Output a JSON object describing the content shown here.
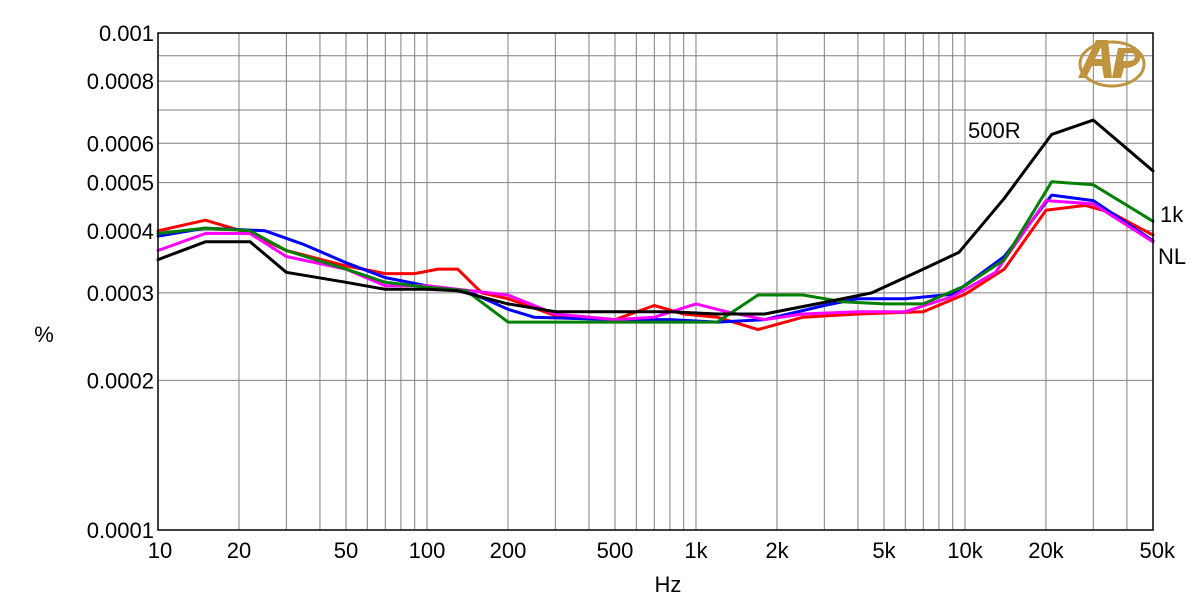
{
  "chart_data": {
    "type": "line",
    "title": "",
    "xlabel": "Hz",
    "ylabel": "%",
    "x_scale": "log",
    "y_scale": "log",
    "xlim": [
      10,
      50000
    ],
    "ylim": [
      0.0001,
      0.001
    ],
    "grid": true,
    "x_ticks": [
      {
        "value": 10,
        "label": "10"
      },
      {
        "value": 20,
        "label": "20"
      },
      {
        "value": 50,
        "label": "50"
      },
      {
        "value": 100,
        "label": "100"
      },
      {
        "value": 200,
        "label": "200"
      },
      {
        "value": 500,
        "label": "500"
      },
      {
        "value": 1000,
        "label": "1k"
      },
      {
        "value": 2000,
        "label": "2k"
      },
      {
        "value": 5000,
        "label": "5k"
      },
      {
        "value": 10000,
        "label": "10k"
      },
      {
        "value": 20000,
        "label": "20k"
      },
      {
        "value": 50000,
        "label": "50k"
      }
    ],
    "y_ticks": [
      {
        "value": 0.001,
        "label": "0.001"
      },
      {
        "value": 0.0008,
        "label": "0.0008"
      },
      {
        "value": 0.0006,
        "label": "0.0006"
      },
      {
        "value": 0.0005,
        "label": "0.0005"
      },
      {
        "value": 0.0004,
        "label": "0.0004"
      },
      {
        "value": 0.0003,
        "label": "0.0003"
      },
      {
        "value": 0.0002,
        "label": "0.0002"
      },
      {
        "value": 0.0001,
        "label": "0.0001"
      }
    ],
    "series": [
      {
        "name": "",
        "color": "#ff0000",
        "x": [
          10,
          15,
          22,
          30,
          50,
          70,
          90,
          110,
          130,
          160,
          200,
          300,
          500,
          700,
          900,
          1200,
          1700,
          2500,
          4000,
          7000,
          10000,
          14000,
          20000,
          28000,
          35000,
          50000
        ],
        "y": [
          0.0004,
          0.00042,
          0.000395,
          0.000365,
          0.00034,
          0.000328,
          0.000328,
          0.000335,
          0.000335,
          0.0003,
          0.000292,
          0.00027,
          0.000265,
          0.000283,
          0.000272,
          0.000268,
          0.000253,
          0.000268,
          0.000272,
          0.000275,
          0.000298,
          0.000335,
          0.00044,
          0.00045,
          0.000435,
          0.000392
        ]
      },
      {
        "name": "",
        "color": "#0000ff",
        "x": [
          10,
          15,
          25,
          35,
          50,
          70,
          100,
          140,
          200,
          250,
          500,
          800,
          1200,
          1800,
          3000,
          4000,
          6000,
          9000,
          14000,
          21000,
          30000,
          50000
        ],
        "y": [
          0.00039,
          0.000405,
          0.0004,
          0.000375,
          0.000345,
          0.000322,
          0.00031,
          0.000303,
          0.000278,
          0.000268,
          0.000265,
          0.000265,
          0.000262,
          0.000265,
          0.000283,
          0.000292,
          0.000292,
          0.000298,
          0.000355,
          0.000472,
          0.00046,
          0.000382
        ]
      },
      {
        "name": "",
        "color": "#ff00ff",
        "x": [
          10,
          15,
          22,
          30,
          50,
          70,
          100,
          130,
          200,
          300,
          500,
          700,
          1000,
          1300,
          1800,
          2500,
          4000,
          6000,
          9000,
          13000,
          20000,
          30000,
          50000
        ],
        "y": [
          0.000365,
          0.000395,
          0.000395,
          0.000355,
          0.000335,
          0.00031,
          0.00031,
          0.000305,
          0.000297,
          0.000272,
          0.000265,
          0.000268,
          0.000285,
          0.000275,
          0.000265,
          0.000272,
          0.000275,
          0.000275,
          0.000295,
          0.00033,
          0.00046,
          0.000453,
          0.00038
        ]
      },
      {
        "name": "1k",
        "color": "#008000",
        "x": [
          10,
          15,
          22,
          30,
          50,
          70,
          100,
          140,
          200,
          300,
          500,
          800,
          1200,
          1700,
          2500,
          3500,
          5000,
          7000,
          10000,
          14000,
          21000,
          30000,
          50000
        ],
        "y": [
          0.000395,
          0.000405,
          0.0004,
          0.000365,
          0.000335,
          0.000315,
          0.000308,
          0.000303,
          0.000262,
          0.000262,
          0.000262,
          0.000262,
          0.000262,
          0.000297,
          0.000297,
          0.000288,
          0.000285,
          0.000285,
          0.00031,
          0.00035,
          0.000502,
          0.000495,
          0.000418
        ]
      },
      {
        "name": "500R",
        "color": "#000000",
        "x": [
          10,
          15,
          22,
          30,
          50,
          70,
          100,
          130,
          200,
          300,
          500,
          800,
          1200,
          1800,
          3000,
          4500,
          7000,
          9500,
          14000,
          21000,
          30000,
          50000
        ],
        "y": [
          0.00035,
          0.00038,
          0.00038,
          0.00033,
          0.000315,
          0.000305,
          0.000305,
          0.000303,
          0.000285,
          0.000275,
          0.000275,
          0.000275,
          0.000272,
          0.000272,
          0.000287,
          0.0003,
          0.000335,
          0.000362,
          0.000465,
          0.000625,
          0.000668,
          0.000528
        ]
      }
    ],
    "annotations": [
      {
        "text": "500R",
        "series": "500R"
      },
      {
        "text": "1k",
        "series": "1k"
      },
      {
        "text": "NL",
        "series": "NL"
      }
    ],
    "logo": "AP"
  }
}
